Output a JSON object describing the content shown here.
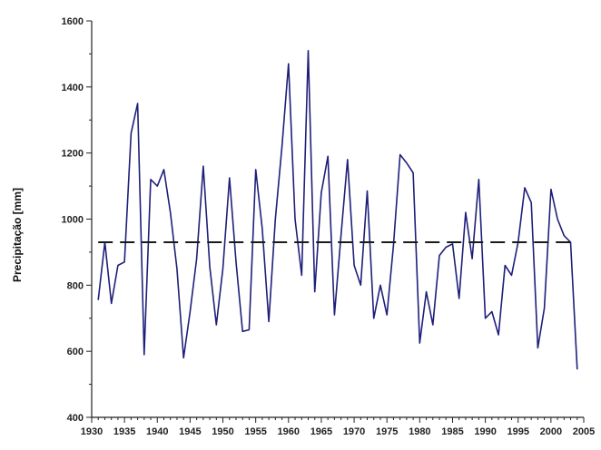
{
  "chart_data": {
    "type": "line",
    "title": "",
    "xlabel": "",
    "ylabel": "Precipitação [mm]",
    "xlim": [
      1930,
      2005
    ],
    "ylim": [
      400,
      1600
    ],
    "x_ticks": [
      1930,
      1935,
      1940,
      1945,
      1950,
      1955,
      1960,
      1965,
      1970,
      1975,
      1980,
      1985,
      1990,
      1995,
      2000,
      2005
    ],
    "x_tick_labels": [
      "1930",
      "1935",
      "1940",
      "1945",
      "1950",
      "1955",
      "1960",
      "1965",
      "1970",
      "1975",
      "1980",
      "1985",
      "1990",
      "1995",
      "2000",
      "2005"
    ],
    "y_ticks": [
      400,
      600,
      800,
      1000,
      1200,
      1400,
      1600
    ],
    "y_tick_labels": [
      "400",
      "600",
      "800",
      "1000",
      "1200",
      "1400",
      "1600"
    ],
    "grid": false,
    "legend": "none",
    "series": [
      {
        "type": "line",
        "color": "#1f1f7a",
        "x": [
          1931,
          1932,
          1933,
          1934,
          1935,
          1936,
          1937,
          1938,
          1939,
          1940,
          1941,
          1942,
          1943,
          1944,
          1945,
          1946,
          1947,
          1948,
          1949,
          1950,
          1951,
          1952,
          1953,
          1954,
          1955,
          1956,
          1957,
          1958,
          1959,
          1960,
          1961,
          1962,
          1963,
          1964,
          1965,
          1966,
          1967,
          1968,
          1969,
          1970,
          1971,
          1972,
          1973,
          1974,
          1975,
          1976,
          1977,
          1978,
          1979,
          1980,
          1981,
          1982,
          1983,
          1984,
          1985,
          1986,
          1987,
          1988,
          1989,
          1990,
          1991,
          1992,
          1993,
          1994,
          1995,
          1996,
          1997,
          1998,
          1999,
          2000,
          2001,
          2002,
          2003,
          2004
        ],
        "values": [
          755,
          930,
          745,
          860,
          870,
          1260,
          1350,
          590,
          1120,
          1100,
          1150,
          1020,
          850,
          580,
          720,
          880,
          1160,
          855,
          680,
          850,
          1125,
          870,
          660,
          665,
          1150,
          970,
          690,
          1000,
          1220,
          1470,
          1000,
          830,
          1510,
          780,
          1080,
          1190,
          710,
          950,
          1180,
          860,
          800,
          1085,
          700,
          800,
          710,
          920,
          1195,
          1170,
          1140,
          625,
          780,
          680,
          890,
          915,
          925,
          760,
          1020,
          880,
          1120,
          700,
          720,
          650,
          860,
          830,
          930,
          1095,
          1050,
          610,
          730,
          1090,
          1000,
          950,
          930,
          545
        ]
      },
      {
        "type": "dashed-line",
        "color": "#1a1a1a",
        "x": [
          1931,
          2004
        ],
        "values": [
          930,
          930
        ]
      }
    ]
  }
}
